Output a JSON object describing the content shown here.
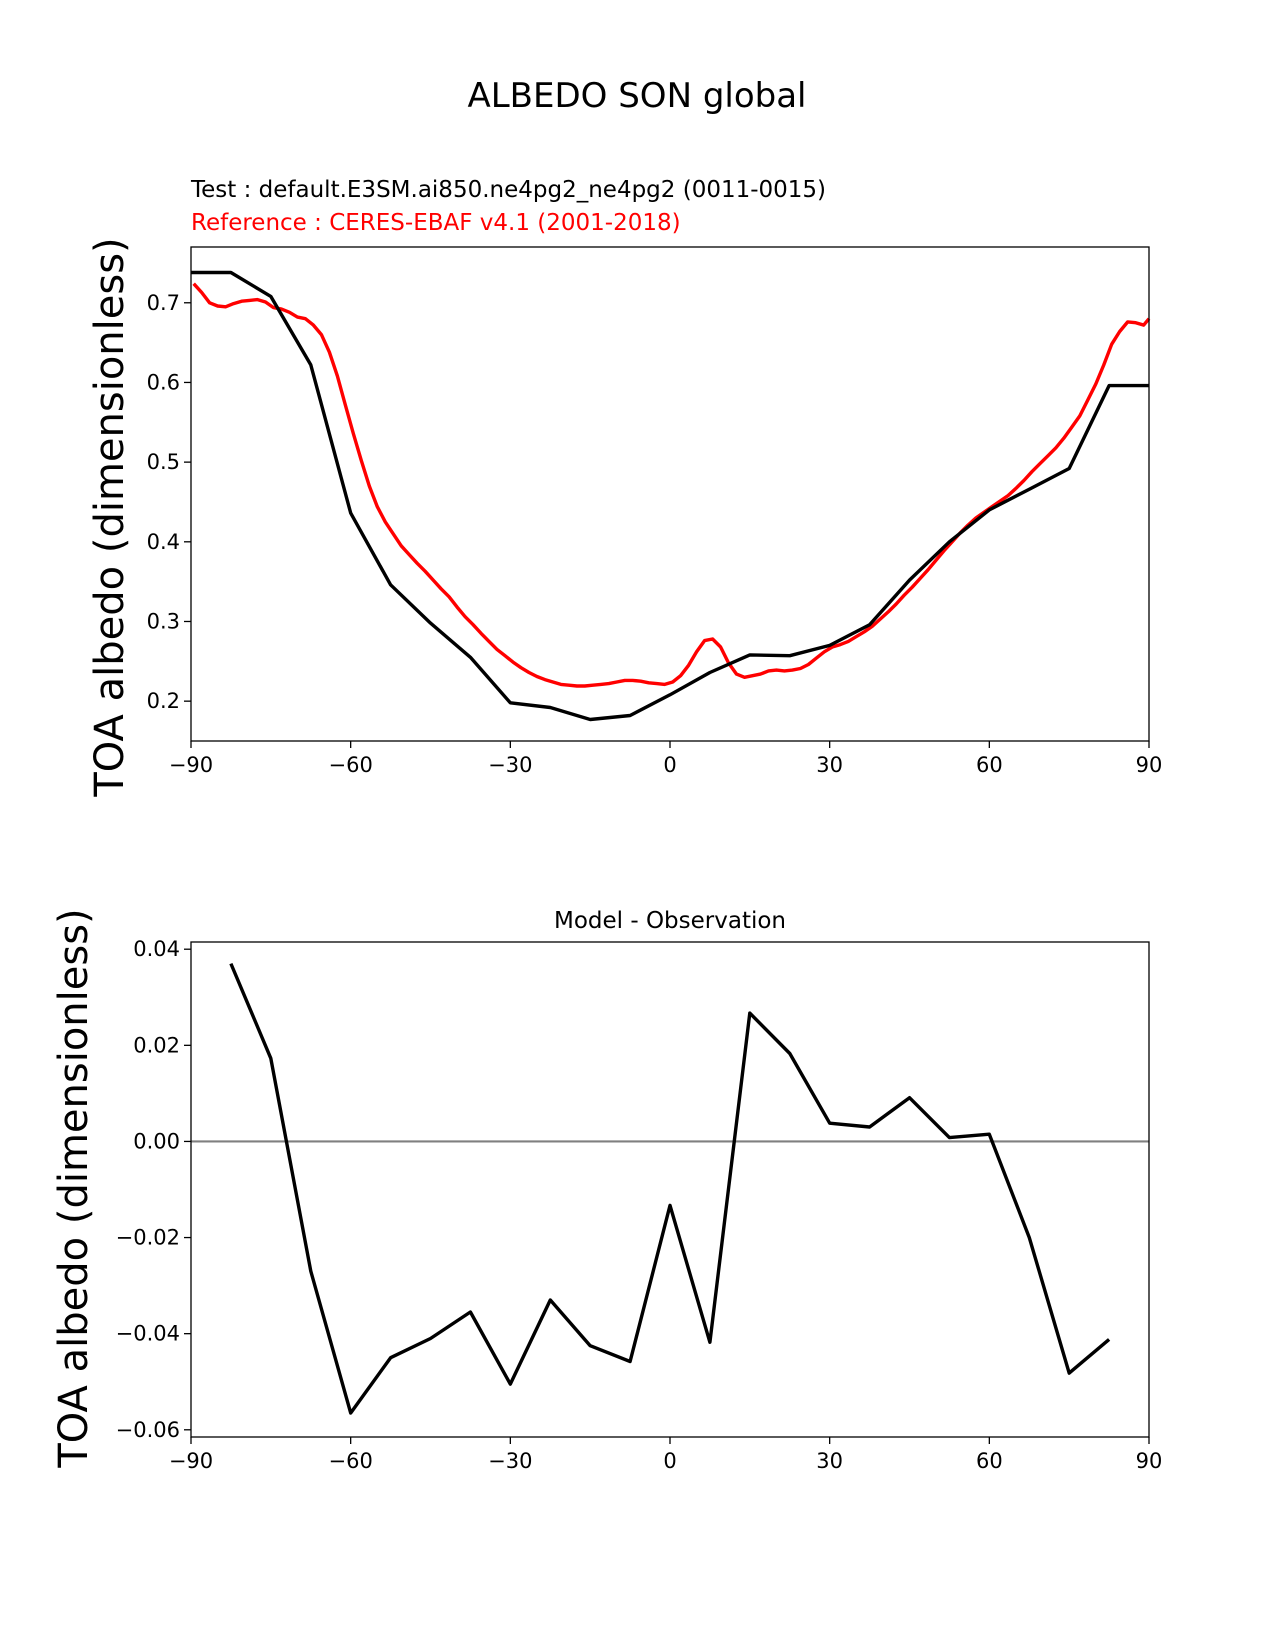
{
  "figure": {
    "title": "ALBEDO SON global"
  },
  "chart_data": [
    {
      "type": "line",
      "test_label": "Test : default.E3SM.ai850.ne4pg2_ne4pg2 (0011-0015)",
      "reference_label": "Reference : CERES-EBAF v4.1 (2001-2018)",
      "xlabel": "",
      "ylabel": "TOA albedo (dimensionless)",
      "xlim": [
        -90,
        90
      ],
      "ylim": [
        0.15,
        0.77
      ],
      "xticks": [
        -90,
        -60,
        -30,
        0,
        30,
        60,
        90
      ],
      "xtick_labels": [
        "−90",
        "−60",
        "−30",
        "0",
        "30",
        "60",
        "90"
      ],
      "yticks": [
        0.2,
        0.3,
        0.4,
        0.5,
        0.6,
        0.7
      ],
      "ytick_labels": [
        "0.2",
        "0.3",
        "0.4",
        "0.5",
        "0.6",
        "0.7"
      ],
      "colors": {
        "test": "#000000",
        "reference": "#ff0000"
      },
      "series": [
        {
          "name": "Test",
          "x": [
            -90,
            -82.5,
            -75,
            -67.5,
            -60,
            -52.5,
            -45,
            -37.5,
            -30,
            -22.5,
            -15,
            -7.5,
            0,
            7.5,
            15,
            22.5,
            30,
            37.5,
            45,
            52.5,
            60,
            67.5,
            75,
            82.5,
            90
          ],
          "values": [
            0.738,
            0.738,
            0.708,
            0.622,
            0.436,
            0.346,
            0.298,
            0.255,
            0.198,
            0.192,
            0.177,
            0.182,
            0.208,
            0.236,
            0.258,
            0.257,
            0.27,
            0.296,
            0.352,
            0.4,
            0.44,
            0.466,
            0.492,
            0.596,
            0.596
          ]
        },
        {
          "name": "Reference",
          "x": [
            -89.5,
            -88,
            -86.5,
            -85,
            -83.5,
            -82,
            -80.5,
            -79,
            -77.5,
            -76,
            -74.5,
            -73,
            -71.5,
            -70,
            -68.5,
            -67,
            -65.5,
            -64,
            -62.5,
            -61,
            -59.5,
            -58,
            -56.5,
            -55,
            -53.5,
            -52,
            -50.5,
            -49,
            -47.5,
            -46,
            -44.5,
            -43,
            -41.5,
            -40,
            -38.5,
            -37,
            -35.5,
            -34,
            -32.5,
            -31,
            -29.5,
            -28,
            -26.5,
            -25,
            -23.5,
            -22,
            -20.5,
            -19,
            -17.5,
            -16,
            -14.5,
            -13,
            -11.5,
            -10,
            -8.5,
            -7,
            -5.5,
            -4,
            -2.5,
            -1,
            0.5,
            2,
            3.5,
            5,
            6.5,
            8,
            9.5,
            11,
            12.5,
            14,
            15.5,
            17,
            18.5,
            20,
            21.5,
            23,
            24.5,
            26,
            27.5,
            29,
            30.5,
            32,
            33.5,
            35,
            36.5,
            38,
            39.5,
            41,
            42.5,
            44,
            45.5,
            47,
            48.5,
            50,
            51.5,
            53,
            54.5,
            56,
            57.5,
            59,
            60.5,
            62,
            63.5,
            65,
            66.5,
            68,
            69.5,
            71,
            72.5,
            74,
            75.5,
            77,
            78.5,
            80,
            81.5,
            83,
            84.5,
            86,
            87.5,
            89,
            90
          ],
          "values": [
            0.724,
            0.713,
            0.7,
            0.696,
            0.695,
            0.699,
            0.702,
            0.703,
            0.704,
            0.701,
            0.694,
            0.692,
            0.688,
            0.682,
            0.68,
            0.672,
            0.66,
            0.638,
            0.608,
            0.572,
            0.536,
            0.502,
            0.47,
            0.444,
            0.425,
            0.41,
            0.395,
            0.384,
            0.373,
            0.363,
            0.352,
            0.341,
            0.331,
            0.318,
            0.306,
            0.296,
            0.285,
            0.275,
            0.265,
            0.257,
            0.249,
            0.242,
            0.236,
            0.231,
            0.227,
            0.224,
            0.221,
            0.22,
            0.219,
            0.219,
            0.22,
            0.221,
            0.222,
            0.224,
            0.226,
            0.226,
            0.225,
            0.223,
            0.222,
            0.221,
            0.224,
            0.232,
            0.245,
            0.262,
            0.276,
            0.278,
            0.268,
            0.248,
            0.234,
            0.23,
            0.232,
            0.234,
            0.238,
            0.239,
            0.238,
            0.239,
            0.241,
            0.246,
            0.254,
            0.262,
            0.268,
            0.271,
            0.275,
            0.281,
            0.287,
            0.294,
            0.303,
            0.312,
            0.322,
            0.333,
            0.343,
            0.354,
            0.365,
            0.377,
            0.389,
            0.4,
            0.411,
            0.421,
            0.43,
            0.437,
            0.444,
            0.451,
            0.458,
            0.467,
            0.477,
            0.488,
            0.498,
            0.508,
            0.518,
            0.53,
            0.544,
            0.558,
            0.578,
            0.598,
            0.622,
            0.648,
            0.664,
            0.676,
            0.675,
            0.672,
            0.68
          ]
        }
      ]
    },
    {
      "type": "line",
      "title": "Model - Observation",
      "xlabel": "",
      "ylabel": "TOA albedo (dimensionless)",
      "xlim": [
        -90,
        90
      ],
      "ylim": [
        -0.0615,
        0.0415
      ],
      "xticks": [
        -90,
        -60,
        -30,
        0,
        30,
        60,
        90
      ],
      "xtick_labels": [
        "−90",
        "−60",
        "−30",
        "0",
        "30",
        "60",
        "90"
      ],
      "yticks": [
        -0.06,
        -0.04,
        -0.02,
        0.0,
        0.02,
        0.04
      ],
      "ytick_labels": [
        "−0.06",
        "−0.04",
        "−0.02",
        "0.00",
        "0.02",
        "0.04"
      ],
      "colors": {
        "diff": "#000000",
        "zero_line": "#808080"
      },
      "zero_line": 0,
      "series": [
        {
          "name": "Model - Observation",
          "x": [
            -82.5,
            -75,
            -67.5,
            -60,
            -52.5,
            -45,
            -37.5,
            -30,
            -22.5,
            -15,
            -7.5,
            0,
            7.5,
            15,
            22.5,
            30,
            37.5,
            45,
            52.5,
            60,
            67.5,
            75,
            82.5
          ],
          "values": [
            0.037,
            0.0173,
            -0.027,
            -0.0565,
            -0.045,
            -0.041,
            -0.0355,
            -0.0505,
            -0.033,
            -0.0425,
            -0.0458,
            -0.0133,
            -0.0418,
            0.0267,
            0.0183,
            0.0038,
            0.003,
            0.0091,
            0.0008,
            0.0015,
            -0.02,
            -0.0482,
            -0.0412
          ]
        }
      ]
    }
  ]
}
